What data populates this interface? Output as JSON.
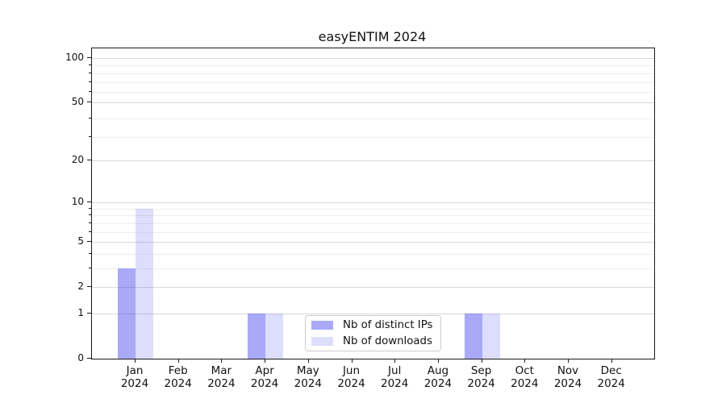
{
  "chart_data": {
    "type": "bar",
    "title": "easyENTIM 2024",
    "categories": [
      "Jan",
      "Feb",
      "Mar",
      "Apr",
      "May",
      "Jun",
      "Jul",
      "Aug",
      "Sep",
      "Oct",
      "Nov",
      "Dec"
    ],
    "x_year_suffix": "2024",
    "series": [
      {
        "name": "Nb of distinct IPs",
        "color": "#aaaaf8",
        "color_base": "#3333ee",
        "alpha": 0.42,
        "values": [
          3,
          0,
          0,
          1,
          0,
          0,
          0,
          0,
          1,
          0,
          0,
          0
        ]
      },
      {
        "name": "Nb of downloads",
        "color": "#dcdcf8",
        "color_base": "#3333ee",
        "alpha": 0.17,
        "values": [
          9,
          0,
          0,
          1,
          0,
          0,
          0,
          0,
          1,
          0,
          0,
          0
        ]
      }
    ],
    "xlabel": "",
    "ylabel": "",
    "yscale": "log1p",
    "ylim": [
      0,
      116
    ],
    "yticks": [
      0,
      1,
      2,
      5,
      10,
      20,
      50,
      100
    ],
    "yticks_minor": [
      3,
      4,
      6,
      7,
      8,
      9,
      29,
      39,
      59,
      69,
      79,
      89
    ],
    "grid": true,
    "legend_position": "lower-center-inside",
    "colors": {
      "background": "#ffffff",
      "grid_major": "#d9d9d9",
      "grid_minor": "#efefef",
      "spine": "#1a1a1a",
      "text": "#111111",
      "legend_border": "#cccccc"
    }
  }
}
